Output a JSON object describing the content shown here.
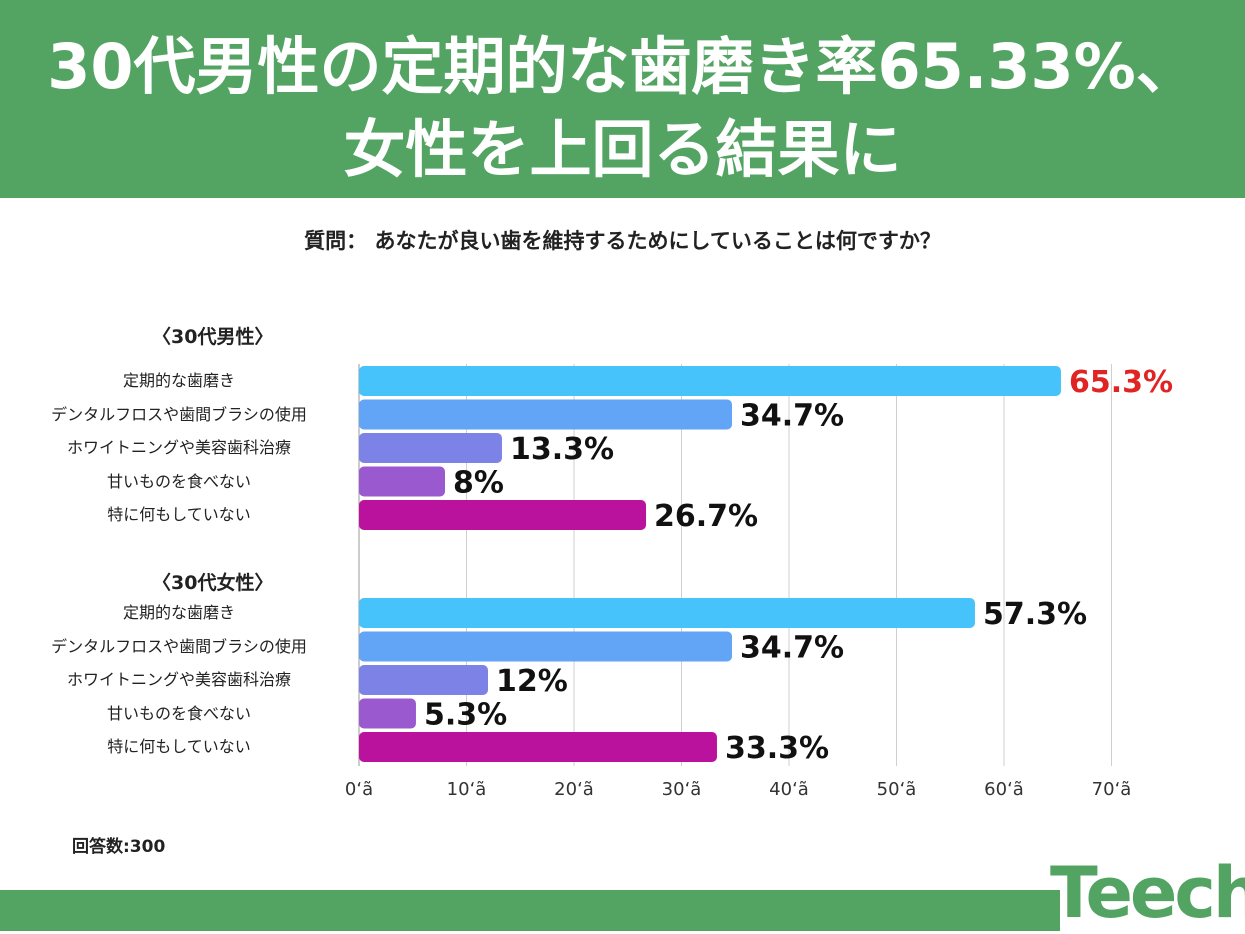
{
  "header": {
    "title_line1": "30代男性の定期的な歯磨き率65.33%、",
    "title_line2": "女性を上回る結果に",
    "bg_color": "#53a463"
  },
  "question": "質問： あなたが良い歯を維持するためにしていることは何ですか？",
  "footer": {
    "respondents": "回答数:300",
    "logo": "Teech"
  },
  "chart_data": {
    "type": "bar",
    "orientation": "horizontal",
    "xlim": [
      0,
      70
    ],
    "xticks": [
      "0‘ã",
      "10‘ã",
      "20‘ã",
      "30‘ã",
      "40‘ã",
      "50‘ã",
      "60‘ã",
      "70‘ã"
    ],
    "grid": true,
    "highlight_color": "#e02424",
    "bar_colors": [
      "#45c3fa",
      "#62a4f5",
      "#7d83e6",
      "#9b59cf",
      "#bb129e"
    ],
    "groups": [
      {
        "label": "〈30代男性〉",
        "categories": [
          "定期的な歯磨き",
          "デンタルフロスや歯間ブラシの使用",
          "ホワイトニングや美容歯科治療",
          "甘いものを食べない",
          "特に何もしていない"
        ],
        "values": [
          65.3,
          34.7,
          13.3,
          8,
          26.7
        ],
        "value_labels": [
          "65.3%",
          "34.7%",
          "13.3%",
          "8%",
          "26.7%"
        ],
        "highlight_index": 0
      },
      {
        "label": "〈30代女性〉",
        "categories": [
          "定期的な歯磨き",
          "デンタルフロスや歯間ブラシの使用",
          "ホワイトニングや美容歯科治療",
          "甘いものを食べない",
          "特に何もしていない"
        ],
        "values": [
          57.3,
          34.7,
          12,
          5.3,
          33.3
        ],
        "value_labels": [
          "57.3%",
          "34.7%",
          "12%",
          "5.3%",
          "33.3%"
        ],
        "highlight_index": -1
      }
    ]
  }
}
